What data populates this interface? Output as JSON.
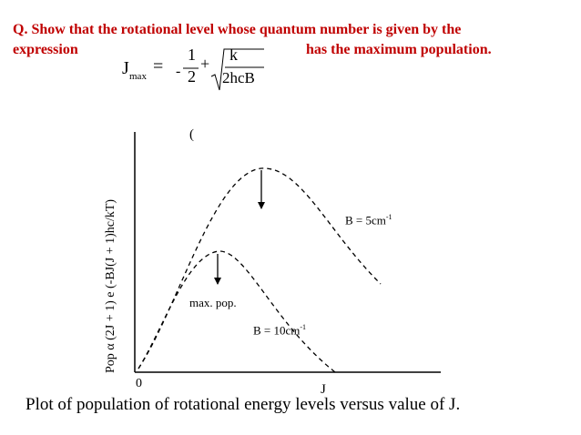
{
  "question": {
    "line1": "Q. Show that the rotational level whose quantum number is given by the",
    "line2_left": "expression",
    "line2_right": "has the maximum population."
  },
  "equation": {
    "lhs_symbol": "J",
    "lhs_subscript": "max",
    "equals": "=",
    "minus": "-",
    "frac_numerator": "1",
    "frac_denominator": "2",
    "plus": "+",
    "sqrt_numerator": "k",
    "sqrt_denominator": "2hcB"
  },
  "stray_paren": "(",
  "chart_data": {
    "type": "line",
    "ylabel": "Pop α (2J + 1) e (-BJ(J + 1)hc/kT)",
    "x_origin_label": "0",
    "xlabel": "J",
    "series": [
      {
        "name": "B = 5cm-1",
        "label_text": "B = 5cm",
        "label_sup": "-1"
      },
      {
        "name": "B = 10cm-1",
        "label_text": "B = 10cm",
        "label_sup": "-1"
      }
    ],
    "annotation": "max. pop.",
    "caption": "Plot of population of rotational energy levels versus value of J."
  }
}
